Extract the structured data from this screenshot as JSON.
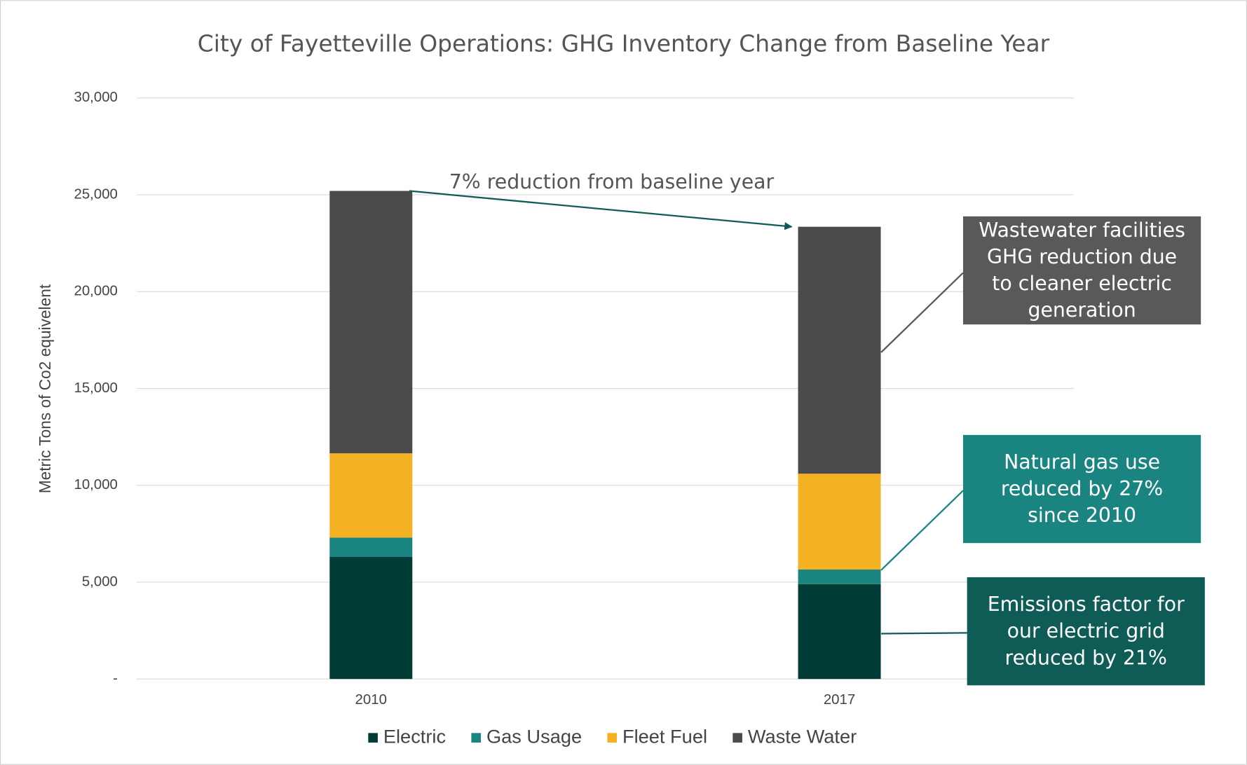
{
  "chart_data": {
    "type": "bar",
    "stacked": true,
    "title": "City of Fayetteville Operations: GHG Inventory Change from Baseline Year",
    "ylabel": "Metric Tons of Co2 equivelent",
    "categories": [
      "2010",
      "2017"
    ],
    "series": [
      {
        "name": "Electric",
        "color": "#003b36",
        "values": [
          6300,
          4900
        ]
      },
      {
        "name": "Gas Usage",
        "color": "#1a8580",
        "values": [
          1000,
          750
        ]
      },
      {
        "name": "Fleet Fuel",
        "color": "#f4b223",
        "values": [
          4350,
          4950
        ]
      },
      {
        "name": "Waste Water",
        "color": "#4b4b4b",
        "values": [
          13550,
          12750
        ]
      }
    ],
    "ylim": [
      0,
      30000
    ],
    "yticks": [
      {
        "value": 0,
        "label": "-"
      },
      {
        "value": 5000,
        "label": "5,000"
      },
      {
        "value": 10000,
        "label": "10,000"
      },
      {
        "value": 15000,
        "label": "15,000"
      },
      {
        "value": 20000,
        "label": "20,000"
      },
      {
        "value": 25000,
        "label": "25,000"
      },
      {
        "value": 30000,
        "label": "30,000"
      }
    ],
    "grid": true,
    "legend": "bottom",
    "annotations": [
      {
        "text": [
          "7% reduction from baseline year"
        ]
      },
      {
        "text": [
          "Wastewater facilities",
          "GHG reduction due",
          "to cleaner electric",
          "generation"
        ],
        "color": "#595959"
      },
      {
        "text": [
          "Natural gas use",
          "reduced by 27%",
          "since 2010"
        ],
        "color": "#1a8580"
      },
      {
        "text": [
          "Emissions factor for",
          "our electric grid",
          "reduced by 21%"
        ],
        "color": "#0f5c57"
      }
    ]
  }
}
